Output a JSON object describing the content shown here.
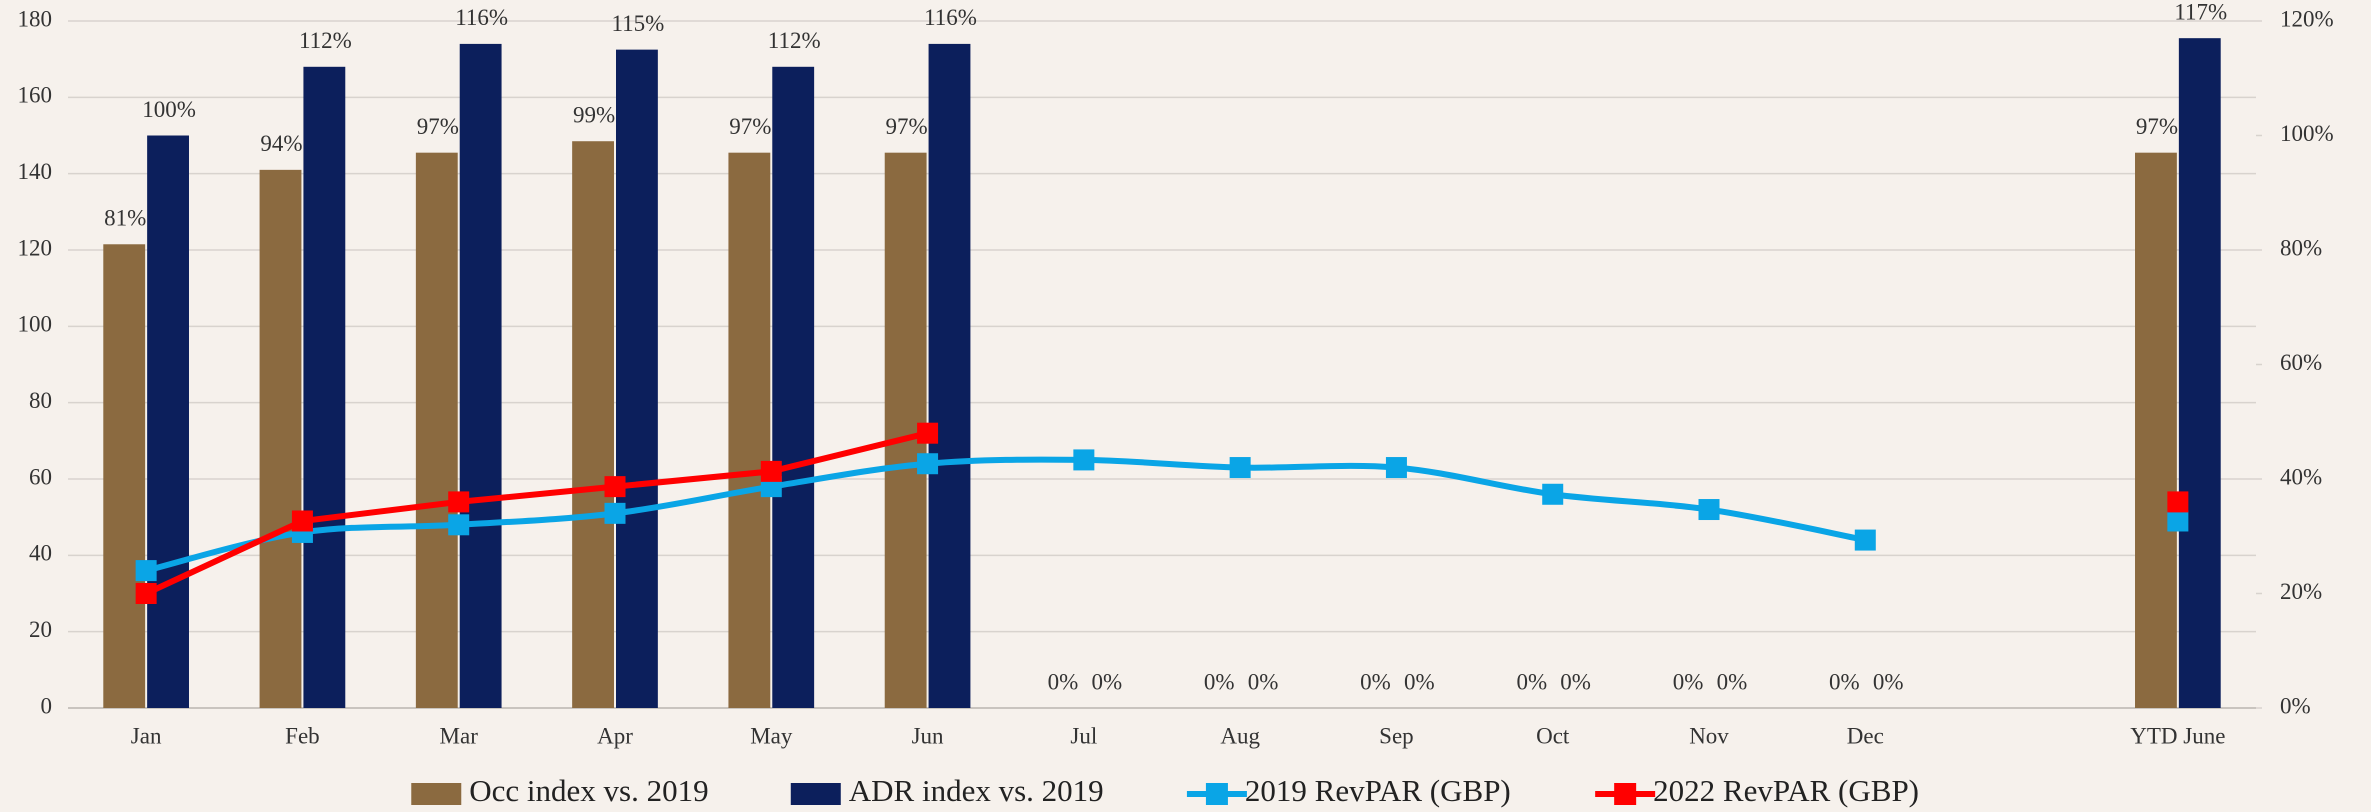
{
  "chart_data": {
    "type": "bar",
    "categories": [
      "Jan",
      "Feb",
      "Mar",
      "Apr",
      "May",
      "Jun",
      "Jul",
      "Aug",
      "Sep",
      "Oct",
      "Nov",
      "Dec",
      null,
      "YTD June"
    ],
    "ylim": [
      0,
      180
    ],
    "yticks": [
      0,
      20,
      40,
      60,
      80,
      100,
      120,
      140,
      160,
      180
    ],
    "y2lim": [
      0,
      120
    ],
    "y2ticks": [
      {
        "value": 0,
        "label": "0%"
      },
      {
        "value": 20,
        "label": "20%"
      },
      {
        "value": 40,
        "label": "40%"
      },
      {
        "value": 60,
        "label": "60%"
      },
      {
        "value": 80,
        "label": "80%"
      },
      {
        "value": 100,
        "label": "100%"
      },
      {
        "value": 120,
        "label": "120%"
      }
    ],
    "grid": true,
    "legend": "bottom",
    "series": [
      {
        "name": "Occ index vs. 2019",
        "type": "bar",
        "axis": "y2",
        "color": "#8b6a40",
        "values": [
          81,
          94,
          97,
          99,
          97,
          97,
          0,
          0,
          0,
          0,
          0,
          0,
          null,
          97
        ],
        "value_labels": [
          "81%",
          "94%",
          "97%",
          "99%",
          "97%",
          "97%",
          "0%",
          "0%",
          "0%",
          "0%",
          "0%",
          "0%",
          null,
          "97%"
        ]
      },
      {
        "name": "ADR index vs. 2019",
        "type": "bar",
        "axis": "y2",
        "color": "#0c1f5c",
        "values": [
          100,
          112,
          116,
          115,
          112,
          116,
          0,
          0,
          0,
          0,
          0,
          0,
          null,
          117
        ],
        "value_labels": [
          "100%",
          "112%",
          "116%",
          "115%",
          "112%",
          "116%",
          "0%",
          "0%",
          "0%",
          "0%",
          "0%",
          "0%",
          null,
          "117%"
        ]
      },
      {
        "name": "2019 RevPAR (GBP)",
        "type": "line",
        "smooth": true,
        "color": "#0aa5e6",
        "values": [
          36,
          46,
          48,
          51,
          58,
          64,
          65,
          63,
          63,
          56,
          52,
          44,
          null,
          49
        ]
      },
      {
        "name": "2022 RevPAR (GBP)",
        "type": "line",
        "smooth": false,
        "color": "#ff0000",
        "values": [
          30,
          49,
          54,
          58,
          62,
          72,
          null,
          null,
          null,
          null,
          null,
          null,
          null,
          54
        ]
      }
    ]
  }
}
